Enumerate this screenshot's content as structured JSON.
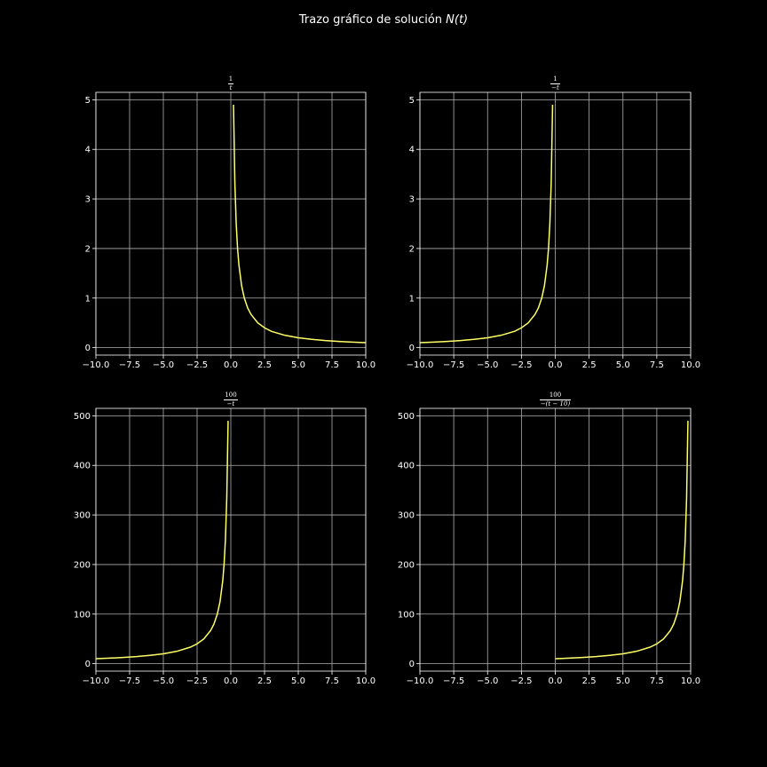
{
  "figure": {
    "title_text": "Trazo gráfico de solución ",
    "title_math": "N(t)"
  },
  "colors": {
    "background": "#000000",
    "line": "#ffff66",
    "grid": "#b0b0b0",
    "text": "#ffffff"
  },
  "chart_data": [
    {
      "type": "line",
      "title_num": "1",
      "title_den": "t",
      "xlim": [
        -10,
        10
      ],
      "ylim": [
        -0.15,
        5.15
      ],
      "xticks": [
        -10,
        -7.5,
        -5,
        -2.5,
        0,
        2.5,
        5,
        7.5,
        10
      ],
      "xtick_labels": [
        "−10.0",
        "−7.5",
        "−5.0",
        "−2.5",
        "0.0",
        "2.5",
        "5.0",
        "7.5",
        "10.0"
      ],
      "yticks": [
        0,
        1,
        2,
        3,
        4,
        5
      ],
      "ytick_labels": [
        "0",
        "1",
        "2",
        "3",
        "4",
        "5"
      ],
      "grid": true,
      "series": [
        {
          "x": [
            0.2,
            0.3,
            0.4,
            0.5,
            0.6,
            0.8,
            1.0,
            1.25,
            1.5,
            2.0,
            2.5,
            3.0,
            4.0,
            5.0,
            6.0,
            7.0,
            8.0,
            9.0,
            10.0
          ],
          "y": [
            4.9,
            3.33,
            2.5,
            2.0,
            1.67,
            1.25,
            1.0,
            0.8,
            0.67,
            0.5,
            0.4,
            0.33,
            0.25,
            0.2,
            0.167,
            0.143,
            0.125,
            0.111,
            0.1
          ]
        }
      ]
    },
    {
      "type": "line",
      "title_num": "1",
      "title_den": "−t",
      "xlim": [
        -10,
        10
      ],
      "ylim": [
        -0.15,
        5.15
      ],
      "xticks": [
        -10,
        -7.5,
        -5,
        -2.5,
        0,
        2.5,
        5,
        7.5,
        10
      ],
      "xtick_labels": [
        "−10.0",
        "−7.5",
        "−5.0",
        "−2.5",
        "0.0",
        "2.5",
        "5.0",
        "7.5",
        "10.0"
      ],
      "yticks": [
        0,
        1,
        2,
        3,
        4,
        5
      ],
      "ytick_labels": [
        "0",
        "1",
        "2",
        "3",
        "4",
        "5"
      ],
      "grid": true,
      "series": [
        {
          "x": [
            -10.0,
            -9.0,
            -8.0,
            -7.0,
            -6.0,
            -5.0,
            -4.0,
            -3.0,
            -2.5,
            -2.0,
            -1.5,
            -1.25,
            -1.0,
            -0.8,
            -0.6,
            -0.5,
            -0.4,
            -0.3,
            -0.2
          ],
          "y": [
            0.1,
            0.111,
            0.125,
            0.143,
            0.167,
            0.2,
            0.25,
            0.33,
            0.4,
            0.5,
            0.67,
            0.8,
            1.0,
            1.25,
            1.67,
            2.0,
            2.5,
            3.33,
            4.9
          ]
        }
      ]
    },
    {
      "type": "line",
      "title_num": "100",
      "title_den": "−t",
      "xlim": [
        -10,
        10
      ],
      "ylim": [
        -15,
        515
      ],
      "xticks": [
        -10,
        -7.5,
        -5,
        -2.5,
        0,
        2.5,
        5,
        7.5,
        10
      ],
      "xtick_labels": [
        "−10.0",
        "−7.5",
        "−5.0",
        "−2.5",
        "0.0",
        "2.5",
        "5.0",
        "7.5",
        "10.0"
      ],
      "yticks": [
        0,
        100,
        200,
        300,
        400,
        500
      ],
      "ytick_labels": [
        "0",
        "100",
        "200",
        "300",
        "400",
        "500"
      ],
      "grid": true,
      "series": [
        {
          "x": [
            -10.0,
            -9.0,
            -8.0,
            -7.0,
            -6.0,
            -5.0,
            -4.0,
            -3.0,
            -2.5,
            -2.0,
            -1.5,
            -1.25,
            -1.0,
            -0.8,
            -0.6,
            -0.5,
            -0.4,
            -0.3,
            -0.2
          ],
          "y": [
            10,
            11.1,
            12.5,
            14.3,
            16.7,
            20,
            25,
            33.3,
            40,
            50,
            66.7,
            80,
            100,
            125,
            166.7,
            200,
            250,
            333,
            490
          ]
        }
      ]
    },
    {
      "type": "line",
      "title_num": "100",
      "title_den": "−(t − 10)",
      "xlim": [
        -10,
        10
      ],
      "ylim": [
        -15,
        515
      ],
      "xticks": [
        -10,
        -7.5,
        -5,
        -2.5,
        0,
        2.5,
        5,
        7.5,
        10
      ],
      "xtick_labels": [
        "−10.0",
        "−7.5",
        "−5.0",
        "−2.5",
        "0.0",
        "2.5",
        "5.0",
        "7.5",
        "10.0"
      ],
      "yticks": [
        0,
        100,
        200,
        300,
        400,
        500
      ],
      "ytick_labels": [
        "0",
        "100",
        "200",
        "300",
        "400",
        "500"
      ],
      "grid": true,
      "series": [
        {
          "x": [
            0.0,
            1.0,
            2.0,
            3.0,
            4.0,
            5.0,
            6.0,
            7.0,
            7.5,
            8.0,
            8.5,
            8.75,
            9.0,
            9.2,
            9.4,
            9.5,
            9.6,
            9.7,
            9.8
          ],
          "y": [
            10,
            11.1,
            12.5,
            14.3,
            16.7,
            20,
            25,
            33.3,
            40,
            50,
            66.7,
            80,
            100,
            125,
            166.7,
            200,
            250,
            333,
            490
          ]
        }
      ]
    }
  ]
}
